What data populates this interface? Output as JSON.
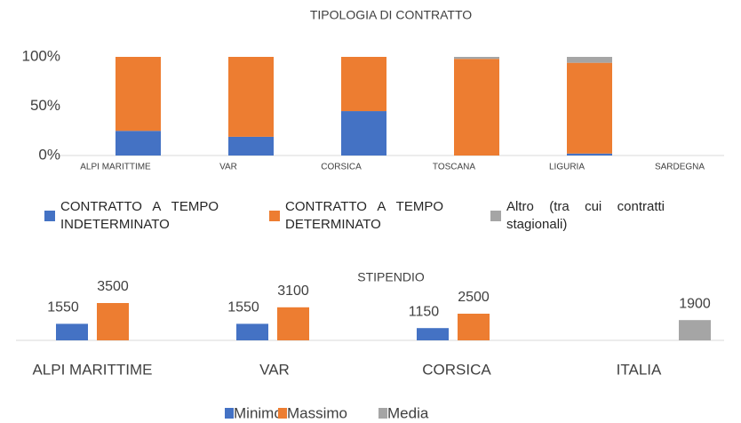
{
  "chart_data": [
    {
      "type": "stacked_bar",
      "title": "TIPOLOGIA DI CONTRATTO",
      "categories": [
        "ALPI MARITTIME",
        "VAR",
        "CORSICA",
        "TOSCANA",
        "LIGURIA",
        "SARDEGNA"
      ],
      "series": [
        {
          "name": "CONTRATTO A TEMPO INDETERMINATO",
          "color": "#4472c4",
          "values": [
            25,
            19,
            45,
            0,
            2,
            0
          ]
        },
        {
          "name": "CONTRATTO A TEMPO DETERMINATO",
          "color": "#ed7d31",
          "values": [
            75,
            81,
            55,
            98,
            92,
            0
          ]
        },
        {
          "name": "Altro (tra cui contratti stagionali)",
          "color": "#a5a5a5",
          "values": [
            0,
            0,
            0,
            2,
            6,
            0
          ]
        }
      ],
      "ylim": [
        0,
        100
      ],
      "yticks": [
        {
          "value": 0,
          "label": "0%"
        },
        {
          "value": 50,
          "label": "50%"
        },
        {
          "value": 100,
          "label": "100%"
        }
      ]
    },
    {
      "type": "bar",
      "title": "STIPENDIO",
      "categories": [
        "ALPI MARITTIME",
        "VAR",
        "CORSICA",
        "ITALIA"
      ],
      "series": [
        {
          "name": "Minimo",
          "color": "#4472c4",
          "values": [
            1550,
            1550,
            1150,
            null
          ]
        },
        {
          "name": "Massimo",
          "color": "#ed7d31",
          "values": [
            3500,
            3100,
            2500,
            null
          ]
        },
        {
          "name": "Media",
          "color": "#a5a5a5",
          "values": [
            null,
            null,
            null,
            1900
          ]
        }
      ]
    }
  ]
}
